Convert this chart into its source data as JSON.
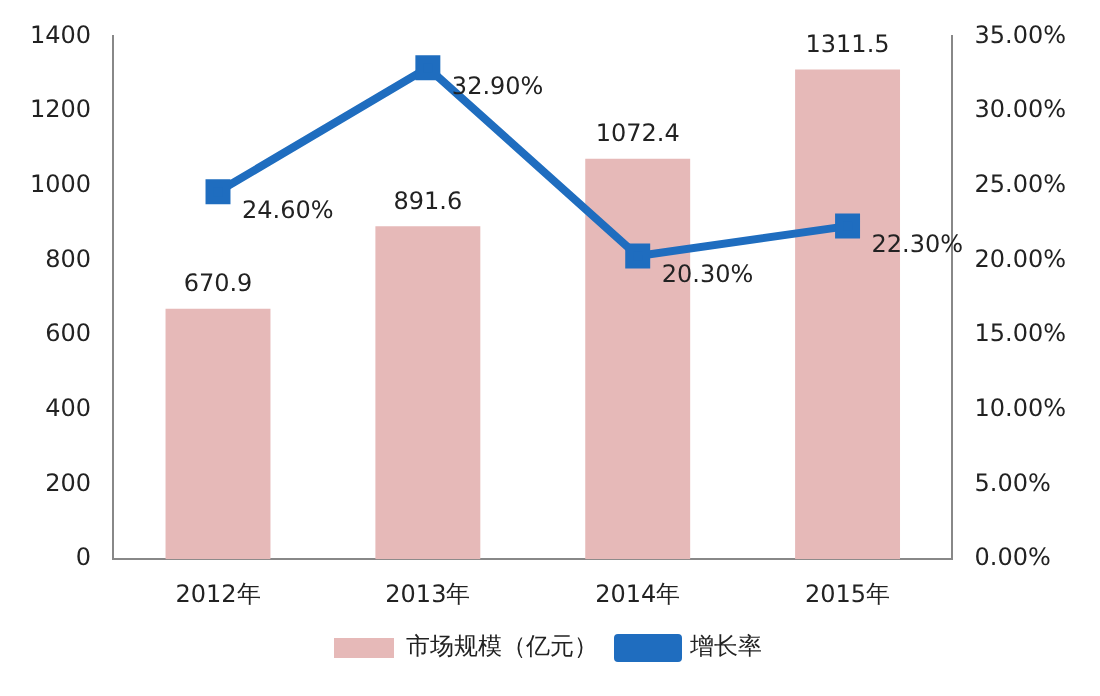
{
  "chart_data": {
    "type": "bar",
    "categories": [
      "2012年",
      "2013年",
      "2014年",
      "2015年"
    ],
    "series": [
      {
        "name": "市场规模（亿元）",
        "color": "#e6b9b8",
        "values": [
          670.9,
          891.6,
          1072.4,
          1311.5
        ],
        "value_labels": [
          "670.9",
          "891.6",
          "1072.4",
          "1311.5"
        ]
      },
      {
        "name": "增长率",
        "type": "line",
        "axis": "y2",
        "color": "#1f6dbf",
        "values": [
          24.6,
          32.9,
          20.3,
          22.3
        ],
        "value_labels": [
          "24.60%",
          "32.90%",
          "20.30%",
          "22.30%"
        ]
      }
    ],
    "ylim": [
      0,
      1400
    ],
    "yticks": [
      0,
      200,
      400,
      600,
      800,
      1000,
      1200,
      1400
    ],
    "y2lim": [
      0,
      35
    ],
    "y2ticks": [
      {
        "value": 0,
        "label": "0.00%"
      },
      {
        "value": 5,
        "label": "5.00%"
      },
      {
        "value": 10,
        "label": "10.00%"
      },
      {
        "value": 15,
        "label": "15.00%"
      },
      {
        "value": 20,
        "label": "20.00%"
      },
      {
        "value": 25,
        "label": "25.00%"
      },
      {
        "value": 30,
        "label": "30.00%"
      },
      {
        "value": 35,
        "label": "35.00%"
      }
    ],
    "grid": false,
    "legend": "bottom",
    "marker": "square"
  }
}
